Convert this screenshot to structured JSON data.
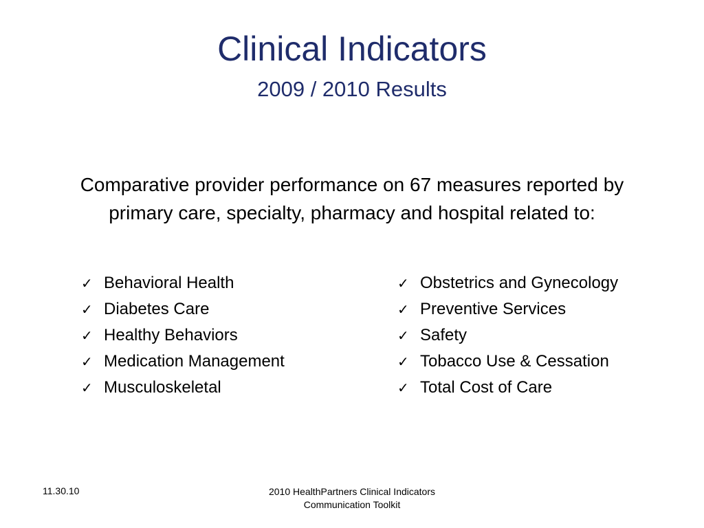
{
  "slide": {
    "title": "Clinical Indicators",
    "subtitle": "2009 / 2010 Results",
    "intro": "Comparative provider performance on 67 measures reported by primary care, specialty, pharmacy and hospital related to:",
    "bullet_icon": "check-icon",
    "left_items": [
      "Behavioral Health",
      "Diabetes Care",
      "Healthy Behaviors",
      "Medication Management",
      "Musculoskeletal"
    ],
    "right_items": [
      "Obstetrics and Gynecology",
      "Preventive Services",
      "Safety",
      "Tobacco Use & Cessation",
      "Total Cost of Care"
    ]
  },
  "footer": {
    "date": "11.30.10",
    "line1": "2010 HealthPartners Clinical Indicators",
    "line2": "Communication Toolkit"
  },
  "colors": {
    "title": "#1f2c6b",
    "body_text": "#000000",
    "background": "#ffffff"
  }
}
